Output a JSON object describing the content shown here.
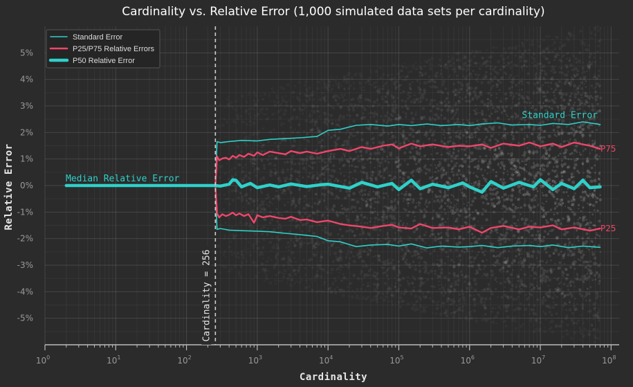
{
  "chart_data": {
    "type": "line",
    "title": "Cardinality vs. Relative Error (1,000 simulated data sets per cardinality)",
    "xlabel": "Cardinality",
    "ylabel": "Relative Error",
    "x_scale": "log",
    "xlim": [
      1,
      130000000
    ],
    "ylim": [
      -6,
      6
    ],
    "x_ticks": [
      {
        "value": 1,
        "base": "10",
        "exp": "0"
      },
      {
        "value": 10,
        "base": "10",
        "exp": "1"
      },
      {
        "value": 100,
        "base": "10",
        "exp": "2"
      },
      {
        "value": 1000,
        "base": "10",
        "exp": "3"
      },
      {
        "value": 10000,
        "base": "10",
        "exp": "4"
      },
      {
        "value": 100000,
        "base": "10",
        "exp": "5"
      },
      {
        "value": 1000000,
        "base": "10",
        "exp": "6"
      },
      {
        "value": 10000000,
        "base": "10",
        "exp": "7"
      },
      {
        "value": 100000000,
        "base": "10",
        "exp": "8"
      }
    ],
    "y_ticks": [
      {
        "value": 5,
        "label": "5%"
      },
      {
        "value": 4,
        "label": "4%"
      },
      {
        "value": 3,
        "label": "3%"
      },
      {
        "value": 2,
        "label": "2%"
      },
      {
        "value": 1,
        "label": "1%"
      },
      {
        "value": 0,
        "label": "0%"
      },
      {
        "value": -1,
        "label": "-1%"
      },
      {
        "value": -2,
        "label": "-2%"
      },
      {
        "value": -3,
        "label": "-3%"
      },
      {
        "value": -4,
        "label": "-4%"
      },
      {
        "value": -5,
        "label": "-5%"
      }
    ],
    "grid": true,
    "legend_position": "top-left",
    "legend": [
      {
        "label": "Standard Error",
        "color": "#2ed1c9",
        "style": "thin"
      },
      {
        "label": "P25/P75 Relative Errors",
        "color": "#f0466a",
        "style": "medium"
      },
      {
        "label": "P50 Relative Error",
        "color": "#2ed1c9",
        "style": "thick"
      }
    ],
    "series": [
      {
        "name": "Standard Error",
        "color": "#2ed1c9",
        "x": [
          2,
          256,
          270,
          300,
          400,
          600,
          1000,
          1500,
          2500,
          4000,
          7000,
          10000,
          15000,
          25000,
          40000,
          70000,
          100000,
          150000,
          250000,
          400000,
          700000,
          1000000,
          1500000,
          2500000,
          4000000,
          7000000,
          10000000,
          15000000,
          25000000,
          40000000,
          70000000
        ],
        "y": [
          0,
          0,
          1.65,
          1.62,
          1.66,
          1.7,
          1.68,
          1.74,
          1.77,
          1.8,
          1.85,
          2.08,
          2.12,
          2.27,
          2.3,
          2.24,
          2.3,
          2.26,
          2.32,
          2.26,
          2.3,
          2.26,
          2.32,
          2.36,
          2.28,
          2.3,
          2.27,
          2.34,
          2.3,
          2.4,
          2.3
        ]
      },
      {
        "name": "Standard Error (lower)",
        "color": "#2ed1c9",
        "x": [
          2,
          256,
          270,
          300,
          400,
          600,
          1000,
          1500,
          2500,
          4000,
          7000,
          10000,
          15000,
          25000,
          40000,
          70000,
          100000,
          150000,
          250000,
          400000,
          700000,
          1000000,
          1500000,
          2500000,
          4000000,
          7000000,
          10000000,
          15000000,
          25000000,
          40000000,
          70000000
        ],
        "y": [
          0,
          0,
          -1.65,
          -1.62,
          -1.68,
          -1.7,
          -1.72,
          -1.74,
          -1.8,
          -1.85,
          -1.92,
          -2.08,
          -2.12,
          -2.3,
          -2.24,
          -2.22,
          -2.28,
          -2.2,
          -2.35,
          -2.28,
          -2.32,
          -2.3,
          -2.26,
          -2.34,
          -2.28,
          -2.26,
          -2.3,
          -2.24,
          -2.34,
          -2.28,
          -2.33
        ]
      },
      {
        "name": "P75",
        "color": "#f0466a",
        "x": [
          256,
          270,
          290,
          320,
          360,
          400,
          450,
          500,
          560,
          650,
          750,
          900,
          1000,
          1200,
          1500,
          2000,
          2500,
          3000,
          4000,
          5000,
          7000,
          10000,
          15000,
          20000,
          30000,
          40000,
          60000,
          80000,
          100000,
          150000,
          200000,
          300000,
          500000,
          700000,
          1000000,
          1500000,
          2000000,
          3000000,
          5000000,
          7000000,
          10000000,
          15000000,
          20000000,
          30000000,
          50000000,
          70000000
        ],
        "y": [
          0,
          1.1,
          0.95,
          1.02,
          1.05,
          0.98,
          1.12,
          1.05,
          1.15,
          1.08,
          1.2,
          1.12,
          1.25,
          1.15,
          1.28,
          1.22,
          1.18,
          1.3,
          1.22,
          1.28,
          1.2,
          1.3,
          1.38,
          1.3,
          1.45,
          1.38,
          1.5,
          1.55,
          1.4,
          1.58,
          1.48,
          1.55,
          1.45,
          1.5,
          1.48,
          1.55,
          1.42,
          1.58,
          1.5,
          1.62,
          1.48,
          1.58,
          1.45,
          1.62,
          1.5,
          1.38
        ]
      },
      {
        "name": "P25",
        "color": "#f0466a",
        "x": [
          256,
          270,
          290,
          320,
          360,
          400,
          450,
          500,
          560,
          650,
          750,
          900,
          1000,
          1200,
          1500,
          2000,
          2500,
          3000,
          4000,
          5000,
          7000,
          10000,
          15000,
          20000,
          30000,
          40000,
          60000,
          80000,
          100000,
          150000,
          200000,
          300000,
          500000,
          700000,
          1000000,
          1500000,
          2000000,
          3000000,
          5000000,
          7000000,
          10000000,
          15000000,
          20000000,
          30000000,
          50000000,
          70000000
        ],
        "y": [
          0,
          -1.05,
          -1.2,
          -1.08,
          -1.15,
          -1.1,
          -1.02,
          -1.12,
          -1.05,
          -1.15,
          -1.08,
          -1.4,
          -1.12,
          -1.2,
          -1.15,
          -1.22,
          -1.25,
          -1.18,
          -1.3,
          -1.28,
          -1.38,
          -1.32,
          -1.45,
          -1.5,
          -1.55,
          -1.6,
          -1.52,
          -1.48,
          -1.58,
          -1.62,
          -1.45,
          -1.6,
          -1.58,
          -1.65,
          -1.55,
          -1.78,
          -1.6,
          -1.52,
          -1.65,
          -1.55,
          -1.58,
          -1.5,
          -1.65,
          -1.58,
          -1.7,
          -1.62
        ]
      },
      {
        "name": "P50 Relative Error",
        "color": "#2ed1c9",
        "x": [
          2,
          256,
          300,
          400,
          450,
          500,
          600,
          800,
          1000,
          1500,
          2000,
          3000,
          5000,
          8000,
          10000,
          20000,
          30000,
          50000,
          80000,
          100000,
          150000,
          200000,
          300000,
          500000,
          800000,
          1000000,
          1500000,
          2000000,
          3000000,
          5000000,
          8000000,
          10000000,
          15000000,
          20000000,
          30000000,
          40000000,
          50000000,
          70000000
        ],
        "y": [
          0,
          0,
          -0.02,
          0.05,
          0.22,
          0.2,
          -0.05,
          0.08,
          -0.08,
          0.02,
          -0.05,
          0.06,
          -0.04,
          0.03,
          0.05,
          -0.1,
          0.12,
          -0.05,
          0.08,
          -0.15,
          0.2,
          -0.12,
          0.05,
          -0.08,
          0.1,
          -0.05,
          -0.25,
          0.15,
          -0.1,
          0.12,
          -0.05,
          0.22,
          -0.15,
          0.08,
          -0.12,
          0.2,
          -0.08,
          -0.05
        ]
      }
    ],
    "annotations": {
      "vline_x": 256,
      "vline_label": "Cardinality = 256",
      "median_label": "Median Relative Error",
      "se_label": "Standard Error",
      "p75_label": "P75",
      "p25_label": "P25"
    }
  }
}
